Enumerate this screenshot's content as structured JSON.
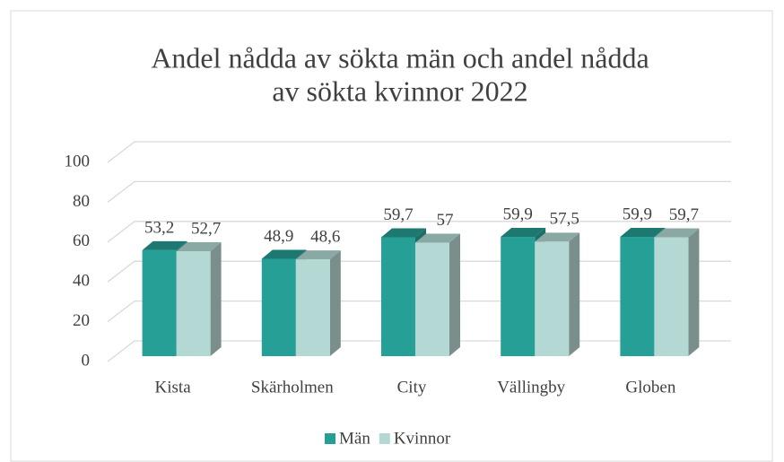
{
  "chart_data": {
    "type": "bar3d",
    "title": [
      "Andel nådda av sökta män och andel nådda",
      "av sökta kvinnor 2022"
    ],
    "categories": [
      "Kista",
      "Skärholmen",
      "City",
      "Vällingby",
      "Globen"
    ],
    "series": [
      {
        "name": "Män",
        "color": "#26a096",
        "values": [
          53.2,
          48.9,
          59.7,
          59.9,
          59.9
        ],
        "value_labels": [
          "53,2",
          "48,9",
          "59,7",
          "59,9",
          "59,9"
        ]
      },
      {
        "name": "Kvinnor",
        "color": "#b4d9d4",
        "values": [
          52.7,
          48.6,
          57,
          57.5,
          59.7
        ],
        "value_labels": [
          "52,7",
          "48,6",
          "57",
          "57,5",
          "59,7"
        ]
      }
    ],
    "ylim": [
      0,
      100
    ],
    "yticks": [
      0,
      20,
      40,
      60,
      80,
      100
    ],
    "grid": true,
    "legend": "bottom"
  }
}
